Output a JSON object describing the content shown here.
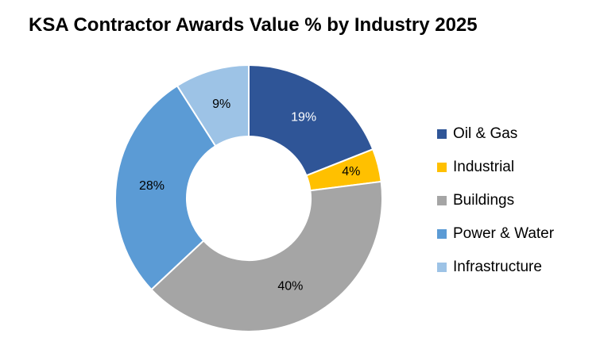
{
  "chart_data": {
    "type": "pie",
    "title": "KSA Contractor Awards Value % by Industry 2025",
    "donut": true,
    "legend_position": "right",
    "categories": [
      "Oil & Gas",
      "Industrial",
      "Buildings",
      "Power & Water",
      "Infrastructure"
    ],
    "values": [
      19,
      4,
      40,
      28,
      9
    ],
    "labels": [
      "19%",
      "4%",
      "40%",
      "28%",
      "9%"
    ],
    "colors": [
      "#2F5597",
      "#FFC000",
      "#A5A5A5",
      "#5B9BD5",
      "#9DC3E6"
    ],
    "label_colors": [
      "#ffffff",
      "#000000",
      "#000000",
      "#000000",
      "#000000"
    ]
  }
}
